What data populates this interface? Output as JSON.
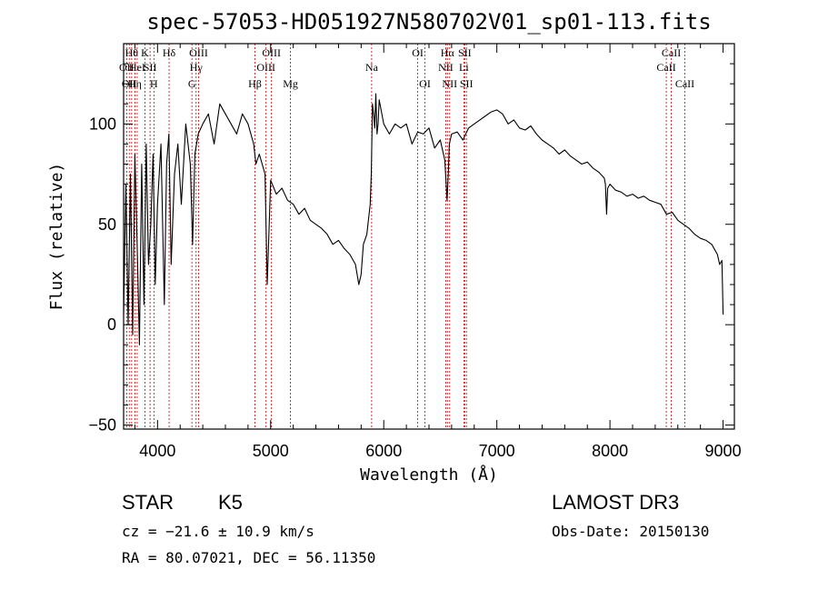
{
  "chart_data": {
    "type": "line",
    "title": "spec-57053-HD051927N580702V01_sp01-113.fits",
    "xlabel": "Wavelength (Å)",
    "ylabel": "Flux (relative)",
    "xlim": [
      3700,
      9100
    ],
    "ylim": [
      -52,
      140
    ],
    "xticks": [
      4000,
      5000,
      6000,
      7000,
      8000,
      9000
    ],
    "xtick_labels": [
      "4000",
      "5000",
      "6000",
      "7000",
      "8000",
      "9000"
    ],
    "yticks": [
      -50,
      0,
      50,
      100
    ],
    "ytick_labels": [
      "−50",
      "0",
      "50",
      "100"
    ],
    "grid": false,
    "series": [
      {
        "name": "flux",
        "x": [
          3700,
          3720,
          3740,
          3760,
          3780,
          3800,
          3820,
          3840,
          3860,
          3880,
          3900,
          3920,
          3940,
          3960,
          3980,
          4000,
          4030,
          4060,
          4080,
          4100,
          4120,
          4150,
          4180,
          4210,
          4250,
          4290,
          4310,
          4330,
          4360,
          4400,
          4450,
          4500,
          4550,
          4600,
          4650,
          4700,
          4750,
          4800,
          4850,
          4870,
          4900,
          4950,
          4970,
          5000,
          5050,
          5100,
          5150,
          5200,
          5250,
          5300,
          5350,
          5400,
          5450,
          5500,
          5550,
          5600,
          5650,
          5700,
          5750,
          5780,
          5800,
          5820,
          5850,
          5880,
          5890,
          5900,
          5910,
          5920,
          5930,
          5940,
          5950,
          5960,
          6000,
          6050,
          6100,
          6150,
          6200,
          6250,
          6300,
          6350,
          6400,
          6450,
          6500,
          6540,
          6560,
          6570,
          6580,
          6600,
          6650,
          6700,
          6750,
          6800,
          6850,
          6900,
          6950,
          7000,
          7050,
          7100,
          7150,
          7200,
          7250,
          7300,
          7350,
          7400,
          7450,
          7500,
          7550,
          7600,
          7650,
          7700,
          7750,
          7800,
          7850,
          7900,
          7950,
          7960,
          7970,
          7980,
          8000,
          8050,
          8100,
          8150,
          8200,
          8250,
          8300,
          8350,
          8400,
          8450,
          8500,
          8550,
          8600,
          8650,
          8700,
          8750,
          8800,
          8850,
          8900,
          8950,
          8970,
          8990,
          9000
        ],
        "y": [
          5,
          70,
          0,
          75,
          -5,
          85,
          40,
          -10,
          80,
          10,
          90,
          30,
          50,
          85,
          20,
          60,
          90,
          10,
          80,
          95,
          30,
          75,
          90,
          60,
          100,
          80,
          40,
          85,
          95,
          100,
          105,
          90,
          110,
          105,
          100,
          95,
          105,
          100,
          90,
          80,
          85,
          75,
          20,
          72,
          65,
          68,
          62,
          60,
          55,
          58,
          52,
          50,
          48,
          45,
          40,
          42,
          38,
          35,
          30,
          20,
          25,
          40,
          45,
          60,
          75,
          110,
          105,
          98,
          115,
          95,
          100,
          112,
          100,
          95,
          100,
          98,
          100,
          90,
          96,
          95,
          98,
          88,
          92,
          82,
          62,
          75,
          90,
          95,
          96,
          92,
          98,
          100,
          102,
          104,
          106,
          107,
          105,
          100,
          102,
          98,
          97,
          99,
          95,
          92,
          90,
          88,
          85,
          87,
          84,
          82,
          80,
          81,
          78,
          76,
          73,
          70,
          55,
          68,
          70,
          67,
          66,
          64,
          65,
          63,
          64,
          62,
          61,
          60,
          55,
          56,
          52,
          50,
          48,
          45,
          43,
          42,
          40,
          35,
          30,
          32,
          5
        ]
      }
    ],
    "emission_lines": [
      {
        "wavelength": 3727,
        "label": "OII",
        "row": 2
      },
      {
        "wavelength": 3750,
        "label": "OII",
        "row": 3
      },
      {
        "wavelength": 3771,
        "label": "Hθ",
        "row": 1
      },
      {
        "wavelength": 3800,
        "label": "Hη",
        "row": 3
      },
      {
        "wavelength": 3820,
        "label": "HeI",
        "row": 2
      },
      {
        "wavelength": 3889,
        "label": "K",
        "row": 1
      },
      {
        "wavelength": 3934,
        "label": "SII",
        "row": 2
      },
      {
        "wavelength": 3968,
        "label": "H",
        "row": 3
      },
      {
        "wavelength": 4102,
        "label": "Hδ",
        "row": 1
      },
      {
        "wavelength": 4304,
        "label": "G",
        "row": 3
      },
      {
        "wavelength": 4341,
        "label": "Hγ",
        "row": 2
      },
      {
        "wavelength": 4363,
        "label": "OIII",
        "row": 1
      },
      {
        "wavelength": 4861,
        "label": "Hβ",
        "row": 3
      },
      {
        "wavelength": 4959,
        "label": "OIII",
        "row": 2
      },
      {
        "wavelength": 5007,
        "label": "OIII",
        "row": 1
      },
      {
        "wavelength": 5175,
        "label": "Mg",
        "row": 3
      },
      {
        "wavelength": 5893,
        "label": "Na",
        "row": 2
      },
      {
        "wavelength": 6300,
        "label": "OI",
        "row": 1
      },
      {
        "wavelength": 6364,
        "label": "OI",
        "row": 3
      },
      {
        "wavelength": 6548,
        "label": "NII",
        "row": 2
      },
      {
        "wavelength": 6563,
        "label": "Hα",
        "row": 1
      },
      {
        "wavelength": 6583,
        "label": "NII",
        "row": 3
      },
      {
        "wavelength": 6708,
        "label": "Li",
        "row": 2
      },
      {
        "wavelength": 6716,
        "label": "SII",
        "row": 1
      },
      {
        "wavelength": 6731,
        "label": "SII",
        "row": 3
      },
      {
        "wavelength": 8498,
        "label": "CaII",
        "row": 2
      },
      {
        "wavelength": 8542,
        "label": "CaII",
        "row": 1
      },
      {
        "wavelength": 8662,
        "label": "CaII",
        "row": 3
      }
    ]
  },
  "info": {
    "object_class": "STAR",
    "subclass": "K5",
    "survey": "LAMOST DR3",
    "redshift": "cz = −21.6 ± 10.9 km/s",
    "obs_date": "Obs-Date: 20150130",
    "coords": "RA =  80.07021, DEC =  56.11350"
  },
  "colors": {
    "line_marker": "#cc0000",
    "spectrum": "#000000",
    "axis": "#000000"
  }
}
